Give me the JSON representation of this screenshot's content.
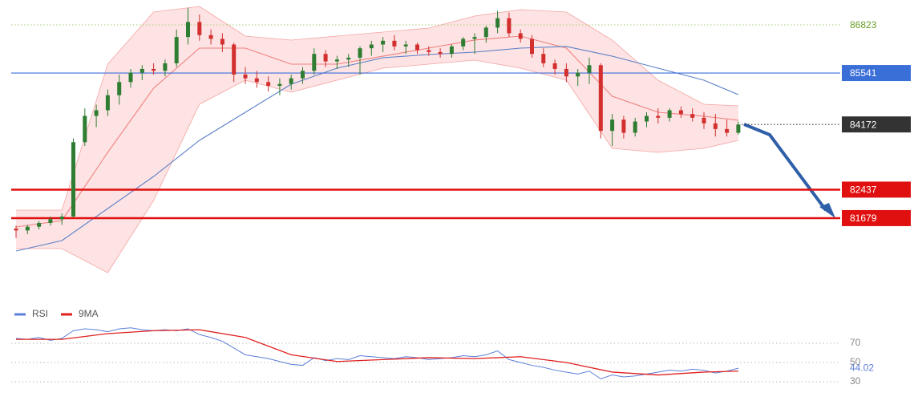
{
  "chart_data": [
    {
      "type": "candlestick",
      "ylim": [
        79372,
        87485
      ],
      "up_color": "#2e7d32",
      "down_color": "#d32f2f",
      "open": [
        81400,
        81350,
        81450,
        81550,
        81650,
        81720,
        83700,
        84400,
        84550,
        84950,
        85300,
        85550,
        85650,
        85600,
        85800,
        86500,
        86900,
        86550,
        86450,
        86300,
        85500,
        85400,
        85300,
        85200,
        85250,
        85400,
        85600,
        86050,
        85850,
        85900,
        85950,
        86200,
        86300,
        86400,
        86250,
        86300,
        86150,
        86100,
        86050,
        86250,
        86450,
        86500,
        86750,
        87000,
        86600,
        86450,
        86050,
        85800,
        85650,
        85450,
        85550,
        85750,
        84000,
        84300,
        83950,
        84250,
        84400,
        84350,
        84550,
        84450,
        84350,
        84200,
        84050,
        83950
      ],
      "high": [
        81480,
        81500,
        81600,
        81720,
        81800,
        83800,
        84600,
        84700,
        85100,
        85500,
        85650,
        85750,
        85800,
        85900,
        86700,
        87280,
        87100,
        86700,
        86600,
        86350,
        85700,
        85600,
        85450,
        85400,
        85500,
        85700,
        86200,
        86150,
        86000,
        86050,
        86250,
        86400,
        86500,
        86550,
        86400,
        86350,
        86250,
        86200,
        86300,
        86500,
        86600,
        86800,
        87200,
        87150,
        86700,
        86550,
        86200,
        85900,
        85800,
        85650,
        85950,
        85800,
        84450,
        84400,
        84350,
        84500,
        84600,
        84600,
        84650,
        84600,
        84500,
        84450,
        84300,
        84250
      ],
      "low": [
        81150,
        81250,
        81380,
        81480,
        81500,
        81700,
        83600,
        84100,
        84400,
        84700,
        85150,
        85350,
        85500,
        85450,
        85700,
        86300,
        86400,
        86300,
        86100,
        85300,
        85250,
        85150,
        85050,
        84950,
        85100,
        85250,
        85500,
        85700,
        85650,
        85700,
        85500,
        86000,
        86100,
        86150,
        86050,
        86050,
        86000,
        85950,
        85950,
        86150,
        86050,
        86350,
        86600,
        86500,
        86350,
        85950,
        85700,
        85500,
        85300,
        85200,
        85250,
        83800,
        83600,
        83800,
        83850,
        84100,
        84200,
        84250,
        84350,
        84250,
        84050,
        83850,
        83850,
        83900
      ],
      "close": [
        81350,
        81450,
        81550,
        81650,
        81720,
        83700,
        84400,
        84550,
        84950,
        85300,
        85550,
        85650,
        85600,
        85800,
        86500,
        86900,
        86550,
        86450,
        86300,
        85500,
        85400,
        85300,
        85200,
        85250,
        85400,
        85600,
        86050,
        85850,
        85900,
        85950,
        86200,
        86300,
        86400,
        86250,
        86300,
        86150,
        86100,
        86050,
        86250,
        86450,
        86500,
        86750,
        87000,
        86600,
        86450,
        86050,
        85800,
        85650,
        85450,
        85550,
        85750,
        84000,
        84300,
        83950,
        84250,
        84400,
        84350,
        84550,
        84450,
        84350,
        84200,
        84050,
        83950,
        84170
      ],
      "overlay_x": [
        0,
        4,
        8,
        12,
        16,
        20,
        24,
        28,
        32,
        36,
        40,
        44,
        48,
        52,
        56,
        60,
        63
      ],
      "band_upper": {
        "color": "#f4a5a5",
        "values": [
          81891,
          81891,
          85777,
          87165,
          87314,
          86524,
          86418,
          86524,
          86631,
          86738,
          87058,
          87229,
          87165,
          86418,
          85350,
          84710,
          84667
        ]
      },
      "band_lower": {
        "color": "#f4a5a5",
        "values": [
          80866,
          80866,
          80226,
          82148,
          84710,
          85350,
          85030,
          85350,
          85670,
          85777,
          85884,
          85670,
          85350,
          83535,
          83428,
          83535,
          83749
        ]
      },
      "ma_fast": {
        "color": "#f08080",
        "values": [
          81443,
          81614,
          83430,
          85137,
          86204,
          86204,
          85777,
          85777,
          85990,
          86204,
          86418,
          86524,
          86204,
          84923,
          84496,
          84390,
          84283
        ]
      },
      "ma_slow": {
        "color": "#5b7fc7",
        "values": [
          80802,
          81080,
          81934,
          82788,
          83749,
          84496,
          85243,
          85670,
          85948,
          86033,
          86097,
          86204,
          86247,
          85990,
          85670,
          85350,
          84966
        ]
      },
      "levels": [
        {
          "value": 86823,
          "color": "#b7d48c",
          "text_color": "#6aa12a",
          "style": "dotted",
          "boxed": false
        },
        {
          "value": 85541,
          "color": "#3b6fd8",
          "text_color": "#ffffff",
          "style": "solid",
          "boxed": true
        },
        {
          "value": 84172,
          "color": "#333333",
          "text_color": "#ffffff",
          "style": "dotted",
          "boxed": true
        },
        {
          "value": 82437,
          "color": "#e01010",
          "text_color": "#ffffff",
          "style": "solid",
          "boxed": true
        },
        {
          "value": 81679,
          "color": "#e01010",
          "text_color": "#ffffff",
          "style": "solid",
          "boxed": true
        }
      ]
    },
    {
      "type": "line",
      "ylim": [
        18.3,
        93.3
      ],
      "yticks": [
        70,
        50,
        30
      ],
      "series": [
        {
          "name": "RSI",
          "color": "#5b7fd8",
          "values": [
            75,
            74,
            76,
            73,
            75,
            83,
            85,
            84,
            82,
            85,
            86,
            84,
            83,
            84,
            83,
            85,
            79,
            76,
            72,
            65,
            58,
            56,
            54,
            51,
            48,
            47,
            55,
            52,
            54,
            53,
            57,
            56,
            55,
            54,
            56,
            55,
            53,
            54,
            55,
            57,
            56,
            58,
            62,
            53,
            50,
            47,
            45,
            42,
            40,
            38,
            41,
            33,
            37,
            35,
            36,
            38,
            40,
            42,
            41,
            43,
            42,
            39,
            41,
            44.02
          ]
        },
        {
          "name": "9MA",
          "color": "#e02020",
          "x": [
            0,
            4,
            8,
            12,
            16,
            20,
            24,
            28,
            32,
            36,
            40,
            44,
            48,
            52,
            56,
            60,
            63
          ],
          "values": [
            74,
            74,
            80,
            83,
            84,
            76,
            58,
            51,
            53,
            55,
            54,
            56,
            50,
            40,
            37,
            40,
            41
          ]
        }
      ]
    }
  ]
}
